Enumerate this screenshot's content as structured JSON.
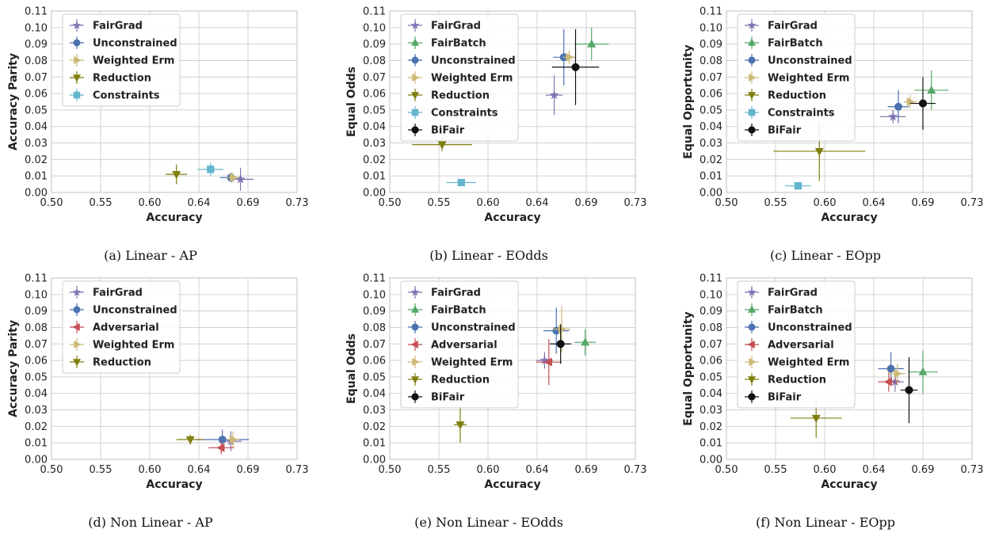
{
  "colors": {
    "FairGrad": "#8172b3",
    "FairBatch": "#55a868",
    "Unconstrained": "#4c72b0",
    "Adversarial": "#c44e52",
    "Weighted Erm": "#ccb974",
    "Reduction": "#7f7f0e",
    "Constraints": "#64b5cd",
    "BiFair": "#111111"
  },
  "markers": {
    "FairGrad": "star",
    "FairBatch": "triangle-up",
    "Unconstrained": "circle",
    "Adversarial": "triangle-left",
    "Weighted Erm": "triangle-right",
    "Reduction": "triangle-down",
    "Constraints": "square",
    "BiFair": "octagon"
  },
  "chart_data": [
    {
      "type": "scatter",
      "caption": "(a) Linear - AP",
      "xlabel": "Accuracy",
      "ylabel": "Accuracy Parity",
      "xticks": [
        "0.50",
        "0.55",
        "0.60",
        "0.64",
        "0.69",
        "0.73"
      ],
      "yticks": [
        "0.00",
        "0.01",
        "0.02",
        "0.03",
        "0.04",
        "0.05",
        "0.06",
        "0.07",
        "0.08",
        "0.09",
        "0.10",
        "0.11"
      ],
      "xlim": [
        0.5,
        0.73
      ],
      "ylim": [
        0.0,
        0.11
      ],
      "grid": true,
      "legend_position": "top-left",
      "series": [
        {
          "name": "FairGrad",
          "x": 0.677,
          "y": 0.008,
          "xerr": 0.012,
          "yerr": 0.007
        },
        {
          "name": "Unconstrained",
          "x": 0.668,
          "y": 0.009,
          "xerr": 0.01,
          "yerr": 0.003
        },
        {
          "name": "Weighted Erm",
          "x": 0.67,
          "y": 0.009,
          "xerr": 0.006,
          "yerr": 0.003
        },
        {
          "name": "Reduction",
          "x": 0.617,
          "y": 0.011,
          "xerr": 0.01,
          "yerr": 0.006
        },
        {
          "name": "Constraints",
          "x": 0.649,
          "y": 0.014,
          "xerr": 0.012,
          "yerr": 0.004
        }
      ]
    },
    {
      "type": "scatter",
      "caption": "(b) Linear - EOdds",
      "xlabel": "Accuracy",
      "ylabel": "Equal Odds",
      "xticks": [
        "0.50",
        "0.55",
        "0.60",
        "0.64",
        "0.69",
        "0.73"
      ],
      "yticks": [
        "0.00",
        "0.01",
        "0.02",
        "0.03",
        "0.04",
        "0.05",
        "0.06",
        "0.07",
        "0.08",
        "0.09",
        "0.10",
        "0.11"
      ],
      "xlim": [
        0.5,
        0.73
      ],
      "ylim": [
        0.0,
        0.11
      ],
      "grid": true,
      "legend_position": "top-left",
      "series": [
        {
          "name": "FairGrad",
          "x": 0.654,
          "y": 0.059,
          "xerr": 0.008,
          "yerr": 0.012
        },
        {
          "name": "FairBatch",
          "x": 0.689,
          "y": 0.09,
          "xerr": 0.016,
          "yerr": 0.01
        },
        {
          "name": "Unconstrained",
          "x": 0.663,
          "y": 0.082,
          "xerr": 0.01,
          "yerr": 0.017
        },
        {
          "name": "Weighted Erm",
          "x": 0.668,
          "y": 0.082,
          "xerr": 0.006,
          "yerr": 0.004
        },
        {
          "name": "Reduction",
          "x": 0.549,
          "y": 0.029,
          "xerr": 0.028,
          "yerr": 0.004
        },
        {
          "name": "Constraints",
          "x": 0.567,
          "y": 0.006,
          "xerr": 0.014,
          "yerr": 0.002
        },
        {
          "name": "BiFair",
          "x": 0.674,
          "y": 0.076,
          "xerr": 0.022,
          "yerr": 0.023
        }
      ]
    },
    {
      "type": "scatter",
      "caption": "(c) Linear - EOpp",
      "xlabel": "Accuracy",
      "ylabel": "Equal Opportunity",
      "xticks": [
        "0.50",
        "0.55",
        "0.60",
        "0.64",
        "0.69",
        "0.73"
      ],
      "yticks": [
        "0.00",
        "0.01",
        "0.02",
        "0.03",
        "0.04",
        "0.05",
        "0.06",
        "0.07",
        "0.08",
        "0.09",
        "0.10",
        "0.11"
      ],
      "xlim": [
        0.5,
        0.73
      ],
      "ylim": [
        0.0,
        0.11
      ],
      "grid": true,
      "legend_position": "top-left",
      "series": [
        {
          "name": "FairGrad",
          "x": 0.656,
          "y": 0.046,
          "xerr": 0.012,
          "yerr": 0.004
        },
        {
          "name": "FairBatch",
          "x": 0.692,
          "y": 0.062,
          "xerr": 0.016,
          "yerr": 0.012
        },
        {
          "name": "Unconstrained",
          "x": 0.661,
          "y": 0.052,
          "xerr": 0.01,
          "yerr": 0.01
        },
        {
          "name": "Weighted Erm",
          "x": 0.672,
          "y": 0.055,
          "xerr": 0.006,
          "yerr": 0.004
        },
        {
          "name": "Reduction",
          "x": 0.587,
          "y": 0.025,
          "xerr": 0.043,
          "yerr": 0.018
        },
        {
          "name": "Constraints",
          "x": 0.567,
          "y": 0.004,
          "xerr": 0.012,
          "yerr": 0.002
        },
        {
          "name": "BiFair",
          "x": 0.684,
          "y": 0.054,
          "xerr": 0.012,
          "yerr": 0.016
        }
      ]
    },
    {
      "type": "scatter",
      "caption": "(d) Non Linear - AP",
      "xlabel": "Accuracy",
      "ylabel": "Accuracy Parity",
      "xticks": [
        "0.50",
        "0.55",
        "0.60",
        "0.64",
        "0.69",
        "0.73"
      ],
      "yticks": [
        "0.00",
        "0.01",
        "0.02",
        "0.03",
        "0.04",
        "0.05",
        "0.06",
        "0.07",
        "0.08",
        "0.09",
        "0.10",
        "0.11"
      ],
      "xlim": [
        0.5,
        0.73
      ],
      "ylim": [
        0.0,
        0.11
      ],
      "grid": true,
      "legend_position": "top-left",
      "series": [
        {
          "name": "FairGrad",
          "x": 0.668,
          "y": 0.011,
          "xerr": 0.01,
          "yerr": 0.006
        },
        {
          "name": "Unconstrained",
          "x": 0.66,
          "y": 0.012,
          "xerr": 0.025,
          "yerr": 0.006
        },
        {
          "name": "Adversarial",
          "x": 0.659,
          "y": 0.007,
          "xerr": 0.012,
          "yerr": 0.004
        },
        {
          "name": "Weighted Erm",
          "x": 0.67,
          "y": 0.012,
          "xerr": 0.006,
          "yerr": 0.005
        },
        {
          "name": "Reduction",
          "x": 0.63,
          "y": 0.012,
          "xerr": 0.013,
          "yerr": 0.003
        }
      ]
    },
    {
      "type": "scatter",
      "caption": "(e) Non Linear - EOdds",
      "xlabel": "Accuracy",
      "ylabel": "Equal Odds",
      "xticks": [
        "0.50",
        "0.55",
        "0.60",
        "0.64",
        "0.69",
        "0.73"
      ],
      "yticks": [
        "0.00",
        "0.01",
        "0.02",
        "0.03",
        "0.04",
        "0.05",
        "0.06",
        "0.07",
        "0.08",
        "0.09",
        "0.10",
        "0.11"
      ],
      "xlim": [
        0.5,
        0.73
      ],
      "ylim": [
        0.0,
        0.11
      ],
      "grid": true,
      "legend_position": "top-left",
      "series": [
        {
          "name": "FairGrad",
          "x": 0.645,
          "y": 0.06,
          "xerr": 0.008,
          "yerr": 0.005
        },
        {
          "name": "FairBatch",
          "x": 0.683,
          "y": 0.071,
          "xerr": 0.01,
          "yerr": 0.008
        },
        {
          "name": "Unconstrained",
          "x": 0.656,
          "y": 0.078,
          "xerr": 0.012,
          "yerr": 0.014
        },
        {
          "name": "Adversarial",
          "x": 0.649,
          "y": 0.059,
          "xerr": 0.012,
          "yerr": 0.014
        },
        {
          "name": "Weighted Erm",
          "x": 0.661,
          "y": 0.079,
          "xerr": 0.008,
          "yerr": 0.014
        },
        {
          "name": "Reduction",
          "x": 0.566,
          "y": 0.021,
          "xerr": 0.006,
          "yerr": 0.011
        },
        {
          "name": "BiFair",
          "x": 0.66,
          "y": 0.07,
          "xerr": 0.01,
          "yerr": 0.012
        }
      ]
    },
    {
      "type": "scatter",
      "caption": "(f) Non Linear - EOpp",
      "xlabel": "Accuracy",
      "ylabel": "Equal Opportunity",
      "xticks": [
        "0.50",
        "0.55",
        "0.60",
        "0.64",
        "0.69",
        "0.73"
      ],
      "yticks": [
        "0.00",
        "0.01",
        "0.02",
        "0.03",
        "0.04",
        "0.05",
        "0.06",
        "0.07",
        "0.08",
        "0.09",
        "0.10",
        "0.11"
      ],
      "xlim": [
        0.5,
        0.73
      ],
      "ylim": [
        0.0,
        0.11
      ],
      "grid": true,
      "legend_position": "top-left",
      "series": [
        {
          "name": "FairGrad",
          "x": 0.658,
          "y": 0.047,
          "xerr": 0.008,
          "yerr": 0.006
        },
        {
          "name": "FairBatch",
          "x": 0.684,
          "y": 0.053,
          "xerr": 0.014,
          "yerr": 0.013
        },
        {
          "name": "Unconstrained",
          "x": 0.654,
          "y": 0.055,
          "xerr": 0.012,
          "yerr": 0.01
        },
        {
          "name": "Adversarial",
          "x": 0.652,
          "y": 0.047,
          "xerr": 0.01,
          "yerr": 0.006
        },
        {
          "name": "Weighted Erm",
          "x": 0.66,
          "y": 0.052,
          "xerr": 0.008,
          "yerr": 0.006
        },
        {
          "name": "Reduction",
          "x": 0.584,
          "y": 0.025,
          "xerr": 0.024,
          "yerr": 0.012
        },
        {
          "name": "BiFair",
          "x": 0.671,
          "y": 0.042,
          "xerr": 0.008,
          "yerr": 0.02
        }
      ]
    }
  ]
}
